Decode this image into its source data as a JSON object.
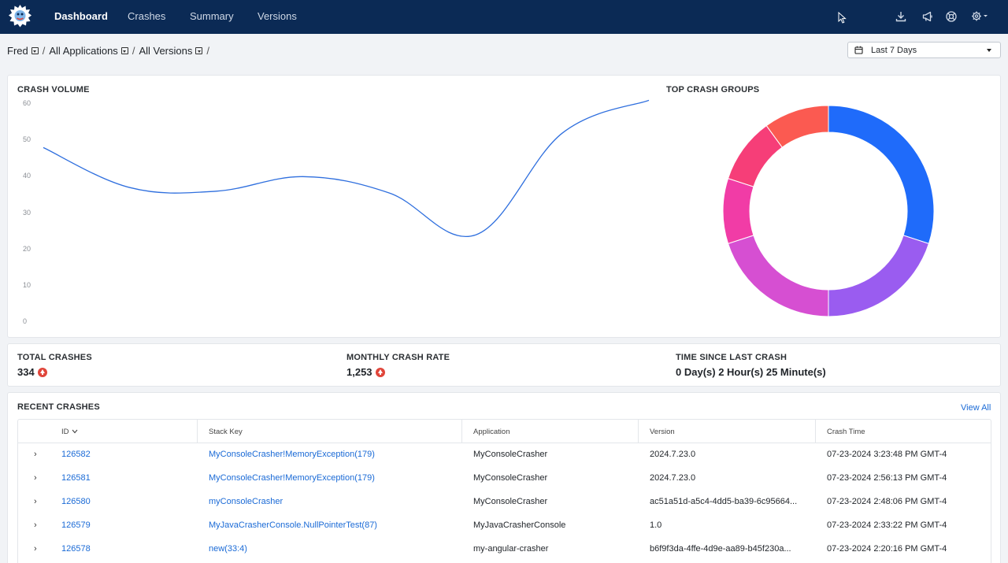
{
  "nav": {
    "items": [
      "Dashboard",
      "Crashes",
      "Summary",
      "Versions"
    ],
    "icons": [
      "download-icon",
      "megaphone-icon",
      "support-icon",
      "gear-icon"
    ]
  },
  "breadcrumb": {
    "user": "Fred",
    "application": "All Applications",
    "version": "All Versions",
    "separator": "/"
  },
  "date_range": {
    "selected": "Last 7 Days"
  },
  "crash_volume": {
    "title": "CRASH VOLUME",
    "y_ticks": [
      "60",
      "50",
      "40",
      "30",
      "20",
      "10",
      "0"
    ]
  },
  "top_crash_groups": {
    "title": "TOP CRASH GROUPS"
  },
  "chart_data": [
    {
      "type": "line",
      "title": "CRASH VOLUME",
      "ylim": [
        0,
        60
      ],
      "y_ticks": [
        0,
        10,
        20,
        30,
        40,
        50,
        60
      ],
      "grid": false,
      "x": [
        1,
        2,
        3,
        4,
        5,
        6,
        7,
        8
      ],
      "values": [
        48,
        37,
        36,
        40,
        35.5,
        24,
        52,
        61
      ],
      "color": "#2f6fde"
    },
    {
      "type": "pie",
      "title": "TOP CRASH GROUPS",
      "donut": true,
      "values": [
        30,
        20,
        20,
        10,
        10,
        10
      ],
      "colors": [
        "#1f6bfa",
        "#9a5cf0",
        "#d64fd2",
        "#f13ca6",
        "#f63e78",
        "#fb5a51"
      ]
    }
  ],
  "metrics": {
    "total_crashes": {
      "label": "TOTAL CRASHES",
      "value": "334"
    },
    "monthly_rate": {
      "label": "MONTHLY CRASH RATE",
      "value": "1,253"
    },
    "time_since": {
      "label": "TIME SINCE LAST CRASH",
      "value": "0 Day(s) 2 Hour(s) 25 Minute(s)"
    }
  },
  "recent_crashes": {
    "title": "RECENT CRASHES",
    "view_all": "View All",
    "columns": [
      "ID",
      "Stack Key",
      "Application",
      "Version",
      "Crash Time"
    ],
    "rows": [
      {
        "id": "126582",
        "stack_key": "MyConsoleCrasher!MemoryException(179)",
        "application": "MyConsoleCrasher",
        "version": "2024.7.23.0",
        "crash_time": "07-23-2024 3:23:48 PM GMT-4"
      },
      {
        "id": "126581",
        "stack_key": "MyConsoleCrasher!MemoryException(179)",
        "application": "MyConsoleCrasher",
        "version": "2024.7.23.0",
        "crash_time": "07-23-2024 2:56:13 PM GMT-4"
      },
      {
        "id": "126580",
        "stack_key": "myConsoleCrasher",
        "application": "MyConsoleCrasher",
        "version": "ac51a51d-a5c4-4dd5-ba39-6c95664...",
        "crash_time": "07-23-2024 2:48:06 PM GMT-4"
      },
      {
        "id": "126579",
        "stack_key": "MyJavaCrasherConsole.NullPointerTest(87)",
        "application": "MyJavaCrasherConsole",
        "version": "1.0",
        "crash_time": "07-23-2024 2:33:22 PM GMT-4"
      },
      {
        "id": "126578",
        "stack_key": "new(33:4)",
        "application": "my-angular-crasher",
        "version": "b6f9f3da-4ffe-4d9e-aa89-b45f230a...",
        "crash_time": "07-23-2024 2:20:16 PM GMT-4"
      }
    ]
  }
}
